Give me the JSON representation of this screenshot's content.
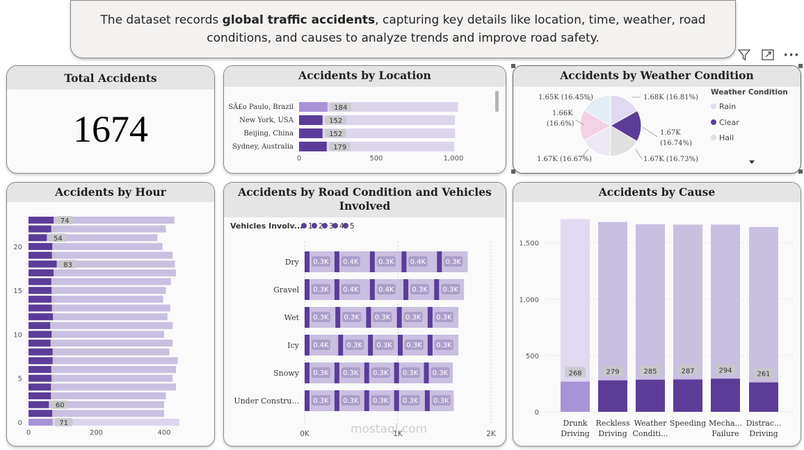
{
  "banner": {
    "text_before": "The dataset records ",
    "text_bold": "global traffic accidents",
    "text_after": ", capturing key details like location, time, weather, road conditions, and causes to analyze trends and improve road safety."
  },
  "toolbar": {
    "icons": [
      "filter-icon",
      "focus-mode-icon",
      "more-options-icon"
    ],
    "more_label": "···"
  },
  "kpi": {
    "title": "Total Accidents",
    "value": "1674"
  },
  "location_chart": {
    "title": "Accidents by Location",
    "type": "bar-horizontal-stacked",
    "categories": [
      "SÃ£o Paulo, Brazil",
      "New York, USA",
      "Beijing, China",
      "Sydney, Australia"
    ],
    "highlight": [
      184,
      152,
      152,
      179
    ],
    "totals": [
      1030,
      1010,
      1010,
      1005
    ],
    "xticks": [
      "0",
      "500",
      "1,000"
    ],
    "xlim": [
      0,
      1000
    ]
  },
  "weather_chart": {
    "title": "Accidents by Weather Condition",
    "type": "pie",
    "legend_title": "Weather Condition",
    "legend": [
      "Rain",
      "Clear",
      "Hail"
    ],
    "slices": [
      {
        "label": "1.68K (16.81%)",
        "value": 16.81,
        "color": "#e1d9f0"
      },
      {
        "label": "1.67K (16.74%)",
        "value": 16.74,
        "color": "#5b3d99"
      },
      {
        "label": "1.67K (16.73%)",
        "value": 16.73,
        "color": "#e0e0e0"
      },
      {
        "label": "1.67K (16.67%)",
        "value": 16.67,
        "color": "#ece8f4"
      },
      {
        "label": "1.66K (16.6%)",
        "value": 16.6,
        "color": "#f2d3e5"
      },
      {
        "label": "1.65K (16.45%)",
        "value": 16.45,
        "color": "#e4ecf6"
      }
    ],
    "label_lines": {
      "s0": "1.68K (16.81%)",
      "s1a": "1.67K",
      "s1b": "(16.74%)",
      "s2": "1.67K (16.73%)",
      "s3": "1.67K (16.67%)",
      "s4a": "1.66K",
      "s4b": "(16.6%)",
      "s5": "1.65K (16.45%)"
    },
    "legend_colors": [
      "#e1d9f0",
      "#5b3d99",
      "#e0e0e0"
    ]
  },
  "hour_chart": {
    "title": "Accidents by Hour",
    "type": "bar-horizontal-stacked",
    "hours_desc": [
      23,
      22,
      21,
      20,
      19,
      18,
      17,
      16,
      15,
      14,
      13,
      12,
      11,
      10,
      9,
      8,
      7,
      6,
      5,
      4,
      3,
      2,
      1,
      0
    ],
    "highlight": [
      74,
      67,
      54,
      70,
      69,
      83,
      74,
      67,
      68,
      68,
      69,
      72,
      64,
      68,
      65,
      71,
      71,
      67,
      68,
      66,
      66,
      60,
      70,
      71
    ],
    "totals": [
      430,
      405,
      380,
      395,
      425,
      432,
      435,
      420,
      405,
      397,
      418,
      410,
      425,
      400,
      425,
      415,
      440,
      435,
      425,
      435,
      405,
      400,
      400,
      445
    ],
    "data_labels": {
      "0": "74",
      "2": "54",
      "5": "83",
      "21": "60",
      "23": "71"
    },
    "yticks": [
      "20",
      "15",
      "10",
      "5",
      "0"
    ],
    "xticks": [
      "0",
      "200",
      "400"
    ],
    "xlim": [
      0,
      480
    ]
  },
  "road_chart": {
    "title_line1": "Accidents by Road Condition and Vehicles",
    "title_line2": "Involved",
    "type": "bar-horizontal-stacked",
    "legend_title": "Vehicles Involv...",
    "legend": [
      "1",
      "2",
      "3",
      "4",
      "5"
    ],
    "categories": [
      "Dry",
      "Gravel",
      "Wet",
      "Icy",
      "Snowy",
      "Under Constru..."
    ],
    "segment_labels": [
      [
        "0.3K",
        "0.4K",
        "0.3K",
        "0.4K",
        "0.3K"
      ],
      [
        "0.3K",
        "0.4K",
        "0.4K",
        "0.3K",
        "0.3K"
      ],
      [
        "0.3K",
        "0.3K",
        "0.3K",
        "0.3K",
        "0.3K"
      ],
      [
        "0.4K",
        "0.3K",
        "0.3K",
        "0.3K",
        "0.3K"
      ],
      [
        "0.3K",
        "0.3K",
        "0.3K",
        "0.3K",
        "0.3K"
      ],
      [
        "0.3K",
        "0.3K",
        "0.3K",
        "0.3K",
        "0.3K"
      ]
    ],
    "segment_values": [
      [
        0.32,
        0.38,
        0.34,
        0.38,
        0.33
      ],
      [
        0.32,
        0.38,
        0.36,
        0.33,
        0.32
      ],
      [
        0.33,
        0.33,
        0.33,
        0.33,
        0.33
      ],
      [
        0.36,
        0.32,
        0.32,
        0.32,
        0.33
      ],
      [
        0.32,
        0.32,
        0.32,
        0.32,
        0.31
      ],
      [
        0.32,
        0.32,
        0.32,
        0.33,
        0.31
      ]
    ],
    "xticks": [
      "0K",
      "1K",
      "2K"
    ],
    "xlim": [
      0,
      2
    ]
  },
  "cause_chart": {
    "title": "Accidents by Cause",
    "type": "bar",
    "categories": [
      [
        "Drunk",
        "Driving"
      ],
      [
        "Reckless",
        "Driving"
      ],
      [
        "Weather",
        "Conditi..."
      ],
      [
        "Speeding",
        ""
      ],
      [
        "Mecha...",
        "Failure"
      ],
      [
        "Distrac...",
        "Driving"
      ]
    ],
    "highlight": [
      268,
      279,
      285,
      287,
      294,
      261
    ],
    "totals": [
      1710,
      1685,
      1665,
      1662,
      1662,
      1640
    ],
    "yticks": [
      "1,500",
      "1,000",
      "500",
      "0"
    ],
    "ylim": [
      0,
      1800
    ]
  },
  "watermark": "mostaql.com"
}
